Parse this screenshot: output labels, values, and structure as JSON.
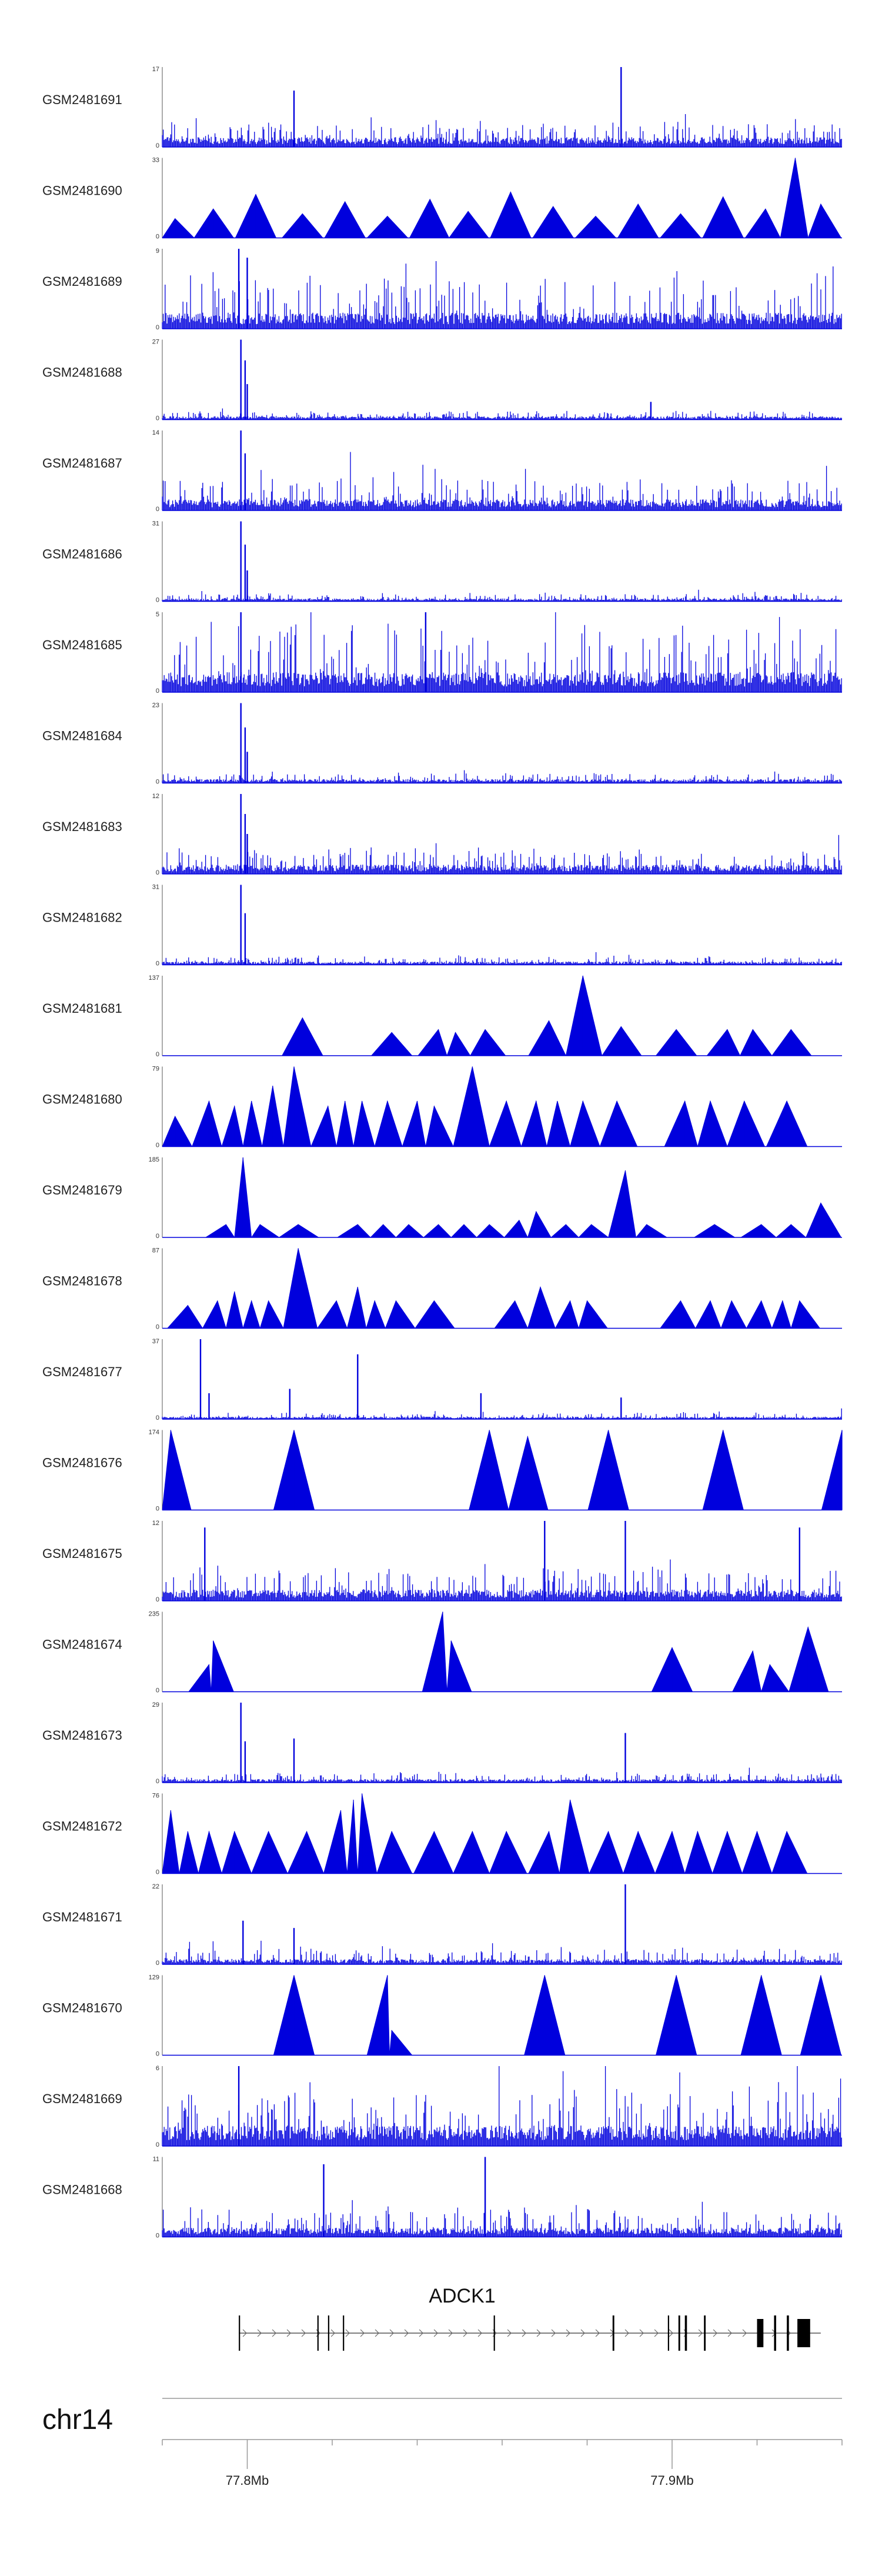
{
  "chart_data": {
    "type": "area",
    "title": "",
    "chromosome": "chr14",
    "xlabel": "",
    "ylabel": "",
    "xrange_mb": [
      77.78,
      77.94
    ],
    "x_ticks": [
      {
        "value": 77.8,
        "label": "77.8Mb"
      },
      {
        "value": 77.9,
        "label": "77.9Mb"
      }
    ],
    "minor_ticks_mb": [
      77.78,
      77.82,
      77.84,
      77.86,
      77.88,
      77.92,
      77.94
    ],
    "series_color": "#0000dd",
    "tracks": [
      {
        "name": "GSM2481691",
        "ymax": 17,
        "ymax_label": "17",
        "ymin_label": "0",
        "style": "dense",
        "baseline": 1.5,
        "noise": 3.5,
        "peaks": [
          [
            77.811,
            12
          ],
          [
            77.888,
            17
          ]
        ]
      },
      {
        "name": "GSM2481690",
        "ymax": 33,
        "ymax_label": "33",
        "ymin_label": "0",
        "style": "sparse",
        "peaks": [
          [
            77.783,
            8
          ],
          [
            77.792,
            12
          ],
          [
            77.802,
            18
          ],
          [
            77.813,
            10
          ],
          [
            77.823,
            15
          ],
          [
            77.833,
            9
          ],
          [
            77.843,
            16
          ],
          [
            77.852,
            11
          ],
          [
            77.862,
            19
          ],
          [
            77.872,
            13
          ],
          [
            77.882,
            9
          ],
          [
            77.892,
            14
          ],
          [
            77.902,
            10
          ],
          [
            77.912,
            17
          ],
          [
            77.922,
            12
          ],
          [
            77.929,
            33
          ],
          [
            77.935,
            14
          ]
        ]
      },
      {
        "name": "GSM2481689",
        "ymax": 9,
        "ymax_label": "9",
        "ymin_label": "0",
        "style": "dense",
        "baseline": 1.3,
        "noise": 4.5,
        "peaks": [
          [
            77.798,
            9
          ],
          [
            77.8,
            8
          ]
        ]
      },
      {
        "name": "GSM2481688",
        "ymax": 27,
        "ymax_label": "27",
        "ymin_label": "0",
        "style": "dense",
        "baseline": 0.8,
        "noise": 2.0,
        "peaks": [
          [
            77.7985,
            27
          ],
          [
            77.7995,
            20
          ],
          [
            77.8,
            12
          ],
          [
            77.895,
            6
          ]
        ]
      },
      {
        "name": "GSM2481687",
        "ymax": 14,
        "ymax_label": "14",
        "ymin_label": "0",
        "style": "dense",
        "baseline": 1.4,
        "noise": 4.0,
        "peaks": [
          [
            77.7985,
            14
          ],
          [
            77.7995,
            10
          ]
        ]
      },
      {
        "name": "GSM2481686",
        "ymax": 31,
        "ymax_label": "31",
        "ymin_label": "0",
        "style": "dense",
        "baseline": 0.8,
        "noise": 2.0,
        "peaks": [
          [
            77.7985,
            31
          ],
          [
            77.7995,
            22
          ],
          [
            77.8,
            12
          ]
        ]
      },
      {
        "name": "GSM2481685",
        "ymax": 5,
        "ymax_label": "5",
        "ymin_label": "0",
        "style": "dense",
        "baseline": 0.9,
        "noise": 3.2,
        "peaks": [
          [
            77.7985,
            5
          ],
          [
            77.842,
            5
          ]
        ]
      },
      {
        "name": "GSM2481684",
        "ymax": 23,
        "ymax_label": "23",
        "ymin_label": "0",
        "style": "dense",
        "baseline": 0.8,
        "noise": 1.8,
        "peaks": [
          [
            77.7985,
            23
          ],
          [
            77.7995,
            16
          ],
          [
            77.8,
            9
          ]
        ]
      },
      {
        "name": "GSM2481683",
        "ymax": 12,
        "ymax_label": "12",
        "ymin_label": "0",
        "style": "dense",
        "baseline": 1.0,
        "noise": 2.5,
        "peaks": [
          [
            77.7985,
            12
          ],
          [
            77.7995,
            9
          ],
          [
            77.8,
            6
          ]
        ]
      },
      {
        "name": "GSM2481682",
        "ymax": 31,
        "ymax_label": "31",
        "ymin_label": "0",
        "style": "dense",
        "baseline": 0.9,
        "noise": 2.0,
        "peaks": [
          [
            77.7985,
            31
          ],
          [
            77.7995,
            20
          ]
        ]
      },
      {
        "name": "GSM2481681",
        "ymax": 137,
        "ymax_label": "137",
        "ymin_label": "0",
        "style": "sparse",
        "peaks": [
          [
            77.813,
            65
          ],
          [
            77.834,
            40
          ],
          [
            77.845,
            45
          ],
          [
            77.849,
            40
          ],
          [
            77.856,
            45
          ],
          [
            77.871,
            60
          ],
          [
            77.879,
            137
          ],
          [
            77.888,
            50
          ],
          [
            77.901,
            45
          ],
          [
            77.913,
            45
          ],
          [
            77.919,
            45
          ],
          [
            77.928,
            45
          ]
        ]
      },
      {
        "name": "GSM2481680",
        "ymax": 79,
        "ymax_label": "79",
        "ymin_label": "0",
        "style": "sparse",
        "peaks": [
          [
            77.783,
            30
          ],
          [
            77.791,
            45
          ],
          [
            77.797,
            40
          ],
          [
            77.801,
            45
          ],
          [
            77.806,
            60
          ],
          [
            77.811,
            79
          ],
          [
            77.819,
            40
          ],
          [
            77.823,
            45
          ],
          [
            77.827,
            45
          ],
          [
            77.833,
            45
          ],
          [
            77.84,
            45
          ],
          [
            77.844,
            40
          ],
          [
            77.853,
            79
          ],
          [
            77.861,
            45
          ],
          [
            77.868,
            45
          ],
          [
            77.873,
            45
          ],
          [
            77.879,
            45
          ],
          [
            77.887,
            45
          ],
          [
            77.903,
            45
          ],
          [
            77.909,
            45
          ],
          [
            77.917,
            45
          ],
          [
            77.927,
            45
          ]
        ]
      },
      {
        "name": "GSM2481679",
        "ymax": 185,
        "ymax_label": "185",
        "ymin_label": "0",
        "style": "sparse",
        "peaks": [
          [
            77.795,
            30
          ],
          [
            77.799,
            185
          ],
          [
            77.803,
            30
          ],
          [
            77.812,
            30
          ],
          [
            77.826,
            30
          ],
          [
            77.832,
            30
          ],
          [
            77.838,
            30
          ],
          [
            77.845,
            30
          ],
          [
            77.851,
            30
          ],
          [
            77.857,
            30
          ],
          [
            77.864,
            40
          ],
          [
            77.868,
            60
          ],
          [
            77.875,
            30
          ],
          [
            77.881,
            30
          ],
          [
            77.889,
            155
          ],
          [
            77.894,
            30
          ],
          [
            77.91,
            30
          ],
          [
            77.921,
            30
          ],
          [
            77.928,
            30
          ],
          [
            77.935,
            80
          ]
        ]
      },
      {
        "name": "GSM2481678",
        "ymax": 87,
        "ymax_label": "87",
        "ymin_label": "0",
        "style": "sparse",
        "peaks": [
          [
            77.786,
            25
          ],
          [
            77.793,
            30
          ],
          [
            77.797,
            40
          ],
          [
            77.801,
            30
          ],
          [
            77.805,
            30
          ],
          [
            77.812,
            87
          ],
          [
            77.821,
            30
          ],
          [
            77.826,
            45
          ],
          [
            77.83,
            30
          ],
          [
            77.835,
            30
          ],
          [
            77.844,
            30
          ],
          [
            77.863,
            30
          ],
          [
            77.869,
            45
          ],
          [
            77.876,
            30
          ],
          [
            77.88,
            30
          ],
          [
            77.902,
            30
          ],
          [
            77.909,
            30
          ],
          [
            77.914,
            30
          ],
          [
            77.921,
            30
          ],
          [
            77.926,
            30
          ],
          [
            77.93,
            30
          ]
        ]
      },
      {
        "name": "GSM2481677",
        "ymax": 37,
        "ymax_label": "37",
        "ymin_label": "0",
        "style": "dense",
        "baseline": 0.8,
        "noise": 2.0,
        "peaks": [
          [
            77.789,
            37
          ],
          [
            77.791,
            12
          ],
          [
            77.81,
            14
          ],
          [
            77.826,
            30
          ],
          [
            77.855,
            12
          ],
          [
            77.888,
            10
          ]
        ]
      },
      {
        "name": "GSM2481676",
        "ymax": 174,
        "ymax_label": "174",
        "ymin_label": "0",
        "style": "sparse",
        "peaks": [
          [
            77.782,
            174
          ],
          [
            77.811,
            174
          ],
          [
            77.857,
            174
          ],
          [
            77.866,
            160
          ],
          [
            77.885,
            174
          ],
          [
            77.912,
            174
          ],
          [
            77.94,
            174
          ]
        ]
      },
      {
        "name": "GSM2481675",
        "ymax": 12,
        "ymax_label": "12",
        "ymin_label": "0",
        "style": "dense",
        "baseline": 1.2,
        "noise": 3.5,
        "peaks": [
          [
            77.79,
            11
          ],
          [
            77.87,
            12
          ],
          [
            77.889,
            12
          ],
          [
            77.93,
            11
          ]
        ]
      },
      {
        "name": "GSM2481674",
        "ymax": 235,
        "ymax_label": "235",
        "ymin_label": "0",
        "style": "sparse",
        "peaks": [
          [
            77.791,
            80
          ],
          [
            77.792,
            150
          ],
          [
            77.846,
            235
          ],
          [
            77.848,
            150
          ],
          [
            77.9,
            130
          ],
          [
            77.919,
            120
          ],
          [
            77.923,
            80
          ],
          [
            77.932,
            190
          ]
        ]
      },
      {
        "name": "GSM2481673",
        "ymax": 29,
        "ymax_label": "29",
        "ymin_label": "0",
        "style": "dense",
        "baseline": 0.9,
        "noise": 2.4,
        "peaks": [
          [
            77.7985,
            29
          ],
          [
            77.7995,
            15
          ],
          [
            77.811,
            16
          ],
          [
            77.889,
            18
          ]
        ]
      },
      {
        "name": "GSM2481672",
        "ymax": 76,
        "ymax_label": "76",
        "ymin_label": "0",
        "style": "sparse",
        "peaks": [
          [
            77.782,
            60
          ],
          [
            77.786,
            40
          ],
          [
            77.791,
            40
          ],
          [
            77.797,
            40
          ],
          [
            77.805,
            40
          ],
          [
            77.814,
            40
          ],
          [
            77.822,
            60
          ],
          [
            77.825,
            70
          ],
          [
            77.827,
            76
          ],
          [
            77.834,
            40
          ],
          [
            77.844,
            40
          ],
          [
            77.853,
            40
          ],
          [
            77.861,
            40
          ],
          [
            77.871,
            40
          ],
          [
            77.876,
            70
          ],
          [
            77.885,
            40
          ],
          [
            77.892,
            40
          ],
          [
            77.9,
            40
          ],
          [
            77.906,
            40
          ],
          [
            77.913,
            40
          ],
          [
            77.92,
            40
          ],
          [
            77.927,
            40
          ]
        ]
      },
      {
        "name": "GSM2481671",
        "ymax": 22,
        "ymax_label": "22",
        "ymin_label": "0",
        "style": "dense",
        "baseline": 1.0,
        "noise": 3.0,
        "peaks": [
          [
            77.799,
            12
          ],
          [
            77.811,
            10
          ],
          [
            77.889,
            22
          ]
        ]
      },
      {
        "name": "GSM2481670",
        "ymax": 129,
        "ymax_label": "129",
        "ymin_label": "0",
        "style": "sparse",
        "peaks": [
          [
            77.811,
            129
          ],
          [
            77.833,
            129
          ],
          [
            77.834,
            40
          ],
          [
            77.87,
            129
          ],
          [
            77.901,
            129
          ],
          [
            77.921,
            129
          ],
          [
            77.935,
            129
          ]
        ]
      },
      {
        "name": "GSM2481669",
        "ymax": 6,
        "ymax_label": "6",
        "ymin_label": "0",
        "style": "dense",
        "baseline": 1.1,
        "noise": 3.0,
        "peaks": [
          [
            77.798,
            6
          ]
        ]
      },
      {
        "name": "GSM2481668",
        "ymax": 11,
        "ymax_label": "11",
        "ymin_label": "0",
        "style": "dense",
        "baseline": 0.9,
        "noise": 3.0,
        "peaks": [
          [
            77.818,
            10
          ],
          [
            77.856,
            11
          ]
        ]
      }
    ],
    "gene": {
      "name": "ADCK1",
      "start_mb": 77.798,
      "end_mb": 77.935,
      "strand": "+",
      "exons_mb": [
        [
          77.798,
          77.7983
        ],
        [
          77.8165,
          77.8168
        ],
        [
          77.819,
          77.8193
        ],
        [
          77.8225,
          77.8228
        ],
        [
          77.858,
          77.8583
        ],
        [
          77.886,
          77.8864
        ],
        [
          77.899,
          77.8993
        ],
        [
          77.9015,
          77.9019
        ],
        [
          77.903,
          77.9035
        ],
        [
          77.9075,
          77.9079
        ],
        [
          77.92,
          77.9215
        ],
        [
          77.924,
          77.9245
        ],
        [
          77.927,
          77.9275
        ],
        [
          77.9295,
          77.9325
        ]
      ]
    }
  }
}
